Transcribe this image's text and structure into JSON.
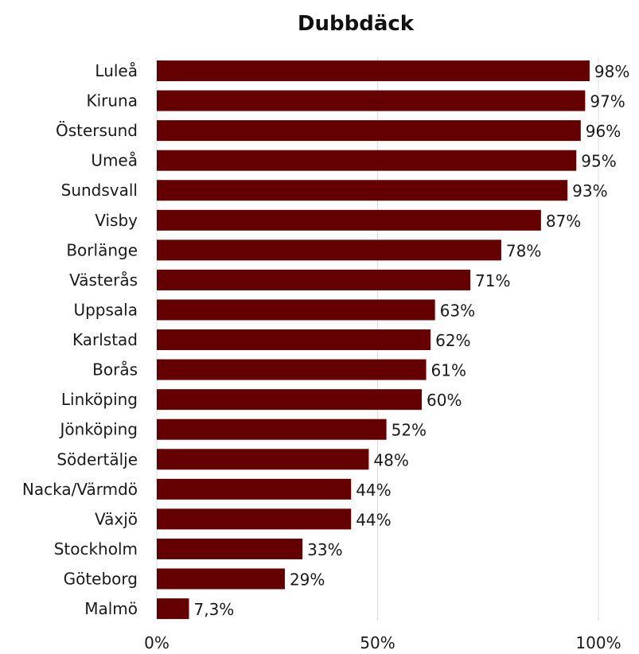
{
  "chart_data": {
    "type": "bar",
    "orientation": "horizontal",
    "title": "Dubbdäck",
    "xlabel": "",
    "ylabel": "",
    "categories": [
      "Luleå",
      "Kiruna",
      "Östersund",
      "Umeå",
      "Sundsvall",
      "Visby",
      "Borlänge",
      "Västerås",
      "Uppsala",
      "Karlstad",
      "Borås",
      "Linköping",
      "Jönköping",
      "Södertälje",
      "Nacka/Värmdö",
      "Växjö",
      "Stockholm",
      "Göteborg",
      "Malmö"
    ],
    "values": [
      98,
      97,
      96,
      95,
      93,
      87,
      78,
      71,
      63,
      62,
      61,
      60,
      52,
      48,
      44,
      44,
      33,
      29,
      7.3
    ],
    "value_labels": [
      "98%",
      "97%",
      "96%",
      "95%",
      "93%",
      "87%",
      "78%",
      "71%",
      "63%",
      "62%",
      "61%",
      "60%",
      "52%",
      "48%",
      "44%",
      "44%",
      "33%",
      "29%",
      "7,3%"
    ],
    "xlim": [
      0,
      100
    ],
    "xticks": [
      0,
      50,
      100
    ],
    "xtick_labels": [
      "0%",
      "50%",
      "100%"
    ],
    "grid": true,
    "colors": {
      "bar": "#650000"
    }
  }
}
